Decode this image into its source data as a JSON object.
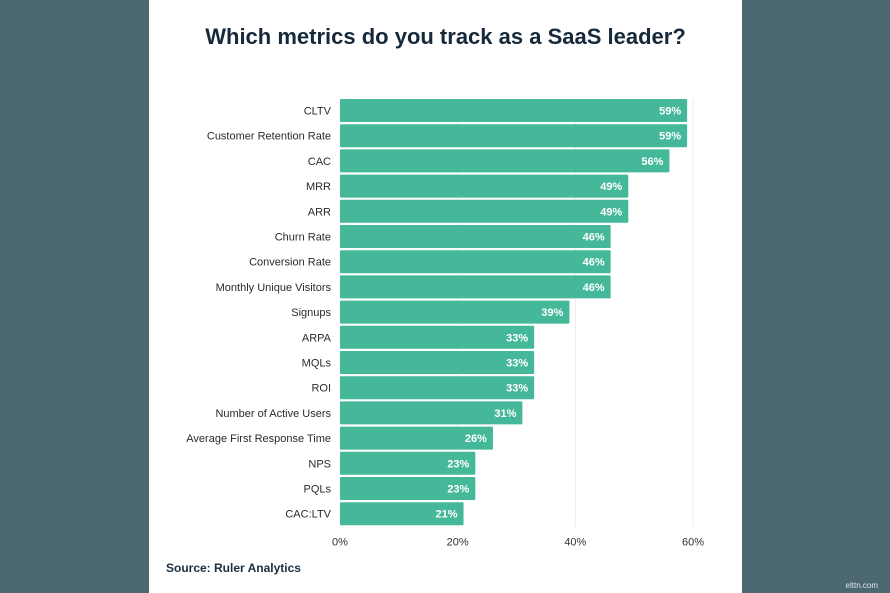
{
  "chart_data": {
    "type": "bar",
    "orientation": "horizontal",
    "title": "Which metrics do you track as a SaaS leader?",
    "categories": [
      "CLTV",
      "Customer Retention Rate",
      "CAC",
      "MRR",
      "ARR",
      "Churn Rate",
      "Conversion Rate",
      "Monthly Unique Visitors",
      "Signups",
      "ARPA",
      "MQLs",
      "ROI",
      "Number of Active Users",
      "Average First Response Time",
      "NPS",
      "PQLs",
      "CAC:LTV"
    ],
    "values": [
      59,
      59,
      56,
      49,
      49,
      46,
      46,
      46,
      39,
      33,
      33,
      33,
      31,
      26,
      23,
      23,
      21
    ],
    "value_labels": [
      "59%",
      "59%",
      "56%",
      "49%",
      "49%",
      "46%",
      "46%",
      "46%",
      "39%",
      "33%",
      "33%",
      "33%",
      "31%",
      "26%",
      "23%",
      "23%",
      "21%"
    ],
    "xlim": [
      0,
      60
    ],
    "xticks": [
      0,
      20,
      40,
      60
    ],
    "xtick_labels": [
      "0%",
      "20%",
      "40%",
      "60%"
    ],
    "grid": "vertical",
    "bar_color": "#45b89a"
  },
  "source": "Source: Ruler Analytics",
  "watermark": "elttn.com"
}
